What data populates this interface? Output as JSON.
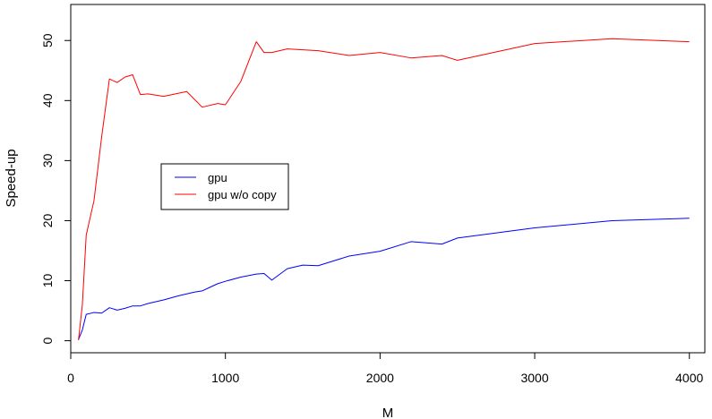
{
  "chart_data": {
    "type": "line",
    "title": "",
    "xlabel": "M",
    "ylabel": "Speed-up",
    "xlim": [
      0,
      4100
    ],
    "ylim": [
      -2,
      56
    ],
    "xticks": [
      0,
      1000,
      2000,
      3000,
      4000
    ],
    "xtick_labels": [
      "0",
      "1000",
      "2000",
      "3000",
      "4000"
    ],
    "yticks": [
      0,
      10,
      20,
      30,
      40,
      50
    ],
    "ytick_labels": [
      "0",
      "10",
      "20",
      "30",
      "40",
      "50"
    ],
    "grid": false,
    "legend_position": "center-left",
    "series": [
      {
        "name": "gpu",
        "color": "#0000ff",
        "x": [
          50,
          75,
          100,
          150,
          200,
          250,
          300,
          350,
          400,
          450,
          500,
          600,
          700,
          800,
          850,
          900,
          950,
          1000,
          1100,
          1200,
          1250,
          1300,
          1400,
          1500,
          1600,
          1800,
          2000,
          2200,
          2400,
          2500,
          3000,
          3500,
          4000
        ],
        "y": [
          0.2,
          1.8,
          4.4,
          4.7,
          4.6,
          5.5,
          5.1,
          5.4,
          5.8,
          5.8,
          6.2,
          6.8,
          7.5,
          8.1,
          8.3,
          8.9,
          9.5,
          9.9,
          10.6,
          11.1,
          11.2,
          10.1,
          12.0,
          12.6,
          12.5,
          14.1,
          14.9,
          16.5,
          16.1,
          17.1,
          18.8,
          20.0,
          20.4
        ]
      },
      {
        "name": "gpu w/o copy",
        "color": "#ff0000",
        "x": [
          50,
          75,
          100,
          150,
          200,
          250,
          300,
          350,
          400,
          450,
          500,
          600,
          750,
          850,
          950,
          1000,
          1100,
          1200,
          1250,
          1300,
          1400,
          1600,
          1800,
          2000,
          2200,
          2400,
          2500,
          3000,
          3500,
          4000
        ],
        "y": [
          0.1,
          6.0,
          17.6,
          23.3,
          34.0,
          43.6,
          43.0,
          43.9,
          44.3,
          41.0,
          41.1,
          40.7,
          41.5,
          38.9,
          39.5,
          39.3,
          43.2,
          49.8,
          48.0,
          48.0,
          48.6,
          48.3,
          47.5,
          48.0,
          47.1,
          47.5,
          46.7,
          49.5,
          50.3,
          49.8
        ]
      }
    ]
  }
}
